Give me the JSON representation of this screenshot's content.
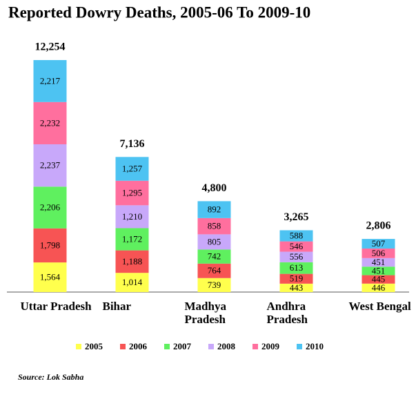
{
  "chart_data": {
    "type": "stacked-bar",
    "title": "Reported Dowry Deaths, 2005-06 To 2009-10",
    "categories": [
      "Uttar Pradesh",
      "Bihar",
      "Madhya Pradesh",
      "Andhra Pradesh",
      "West Bengal"
    ],
    "series": [
      {
        "name": "2005",
        "color": "#ffff4d",
        "values": [
          1564,
          1014,
          739,
          443,
          446
        ],
        "value_labels": [
          "1,564",
          "1,014",
          "739",
          "443",
          "446"
        ]
      },
      {
        "name": "2006",
        "color": "#f75454",
        "values": [
          1798,
          1188,
          764,
          519,
          445
        ],
        "value_labels": [
          "1,798",
          "1,188",
          "764",
          "519",
          "445"
        ]
      },
      {
        "name": "2007",
        "color": "#5ff05f",
        "values": [
          2206,
          1172,
          742,
          613,
          451
        ],
        "value_labels": [
          "2,206",
          "1,172",
          "742",
          "613",
          "451"
        ]
      },
      {
        "name": "2008",
        "color": "#c8a8fa",
        "values": [
          2237,
          1210,
          805,
          556,
          451
        ],
        "value_labels": [
          "2,237",
          "1,210",
          "805",
          "556",
          "451"
        ]
      },
      {
        "name": "2009",
        "color": "#ff6f9e",
        "values": [
          2232,
          1295,
          858,
          546,
          506
        ],
        "value_labels": [
          "2,232",
          "1,295",
          "858",
          "546",
          "506"
        ]
      },
      {
        "name": "2010",
        "color": "#4dc3f2",
        "values": [
          2217,
          1257,
          892,
          588,
          507
        ],
        "value_labels": [
          "2,217",
          "1,257",
          "892",
          "588",
          "507"
        ]
      }
    ],
    "totals": [
      12254,
      7136,
      4800,
      3265,
      2806
    ],
    "total_labels": [
      "12,254",
      "7,136",
      "4,800",
      "3,265",
      "2,806"
    ],
    "source": "Source: Lok Sabha"
  }
}
